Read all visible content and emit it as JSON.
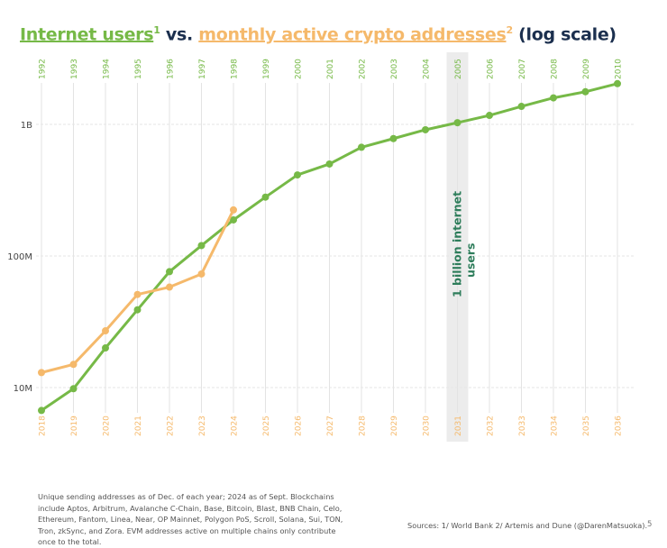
{
  "title": {
    "part1": "Internet users",
    "sup1": "1",
    "vs": " vs. ",
    "part2": "monthly active crypto addresses",
    "sup2": "2",
    "suffix": " (log scale)"
  },
  "colors": {
    "internet": "#76b947",
    "crypto": "#f5b96b",
    "title": "#1b2f4e",
    "highlight": "#ececec",
    "annotation": "#2e7d5b"
  },
  "chart_data": {
    "type": "line",
    "title": "Internet users vs. monthly active crypto addresses (log scale)",
    "y_scale": "log",
    "ylim": [
      5000000,
      2500000000
    ],
    "y_ticks": [
      {
        "value": 10000000,
        "label": "10M"
      },
      {
        "value": 100000000,
        "label": "100M"
      },
      {
        "value": 1000000000,
        "label": "1B"
      }
    ],
    "grid": true,
    "x_top": {
      "labels": [
        "1992",
        "1993",
        "1994",
        "1995",
        "1996",
        "1997",
        "1998",
        "1999",
        "2000",
        "2001",
        "2002",
        "2003",
        "2004",
        "2005",
        "2006",
        "2007",
        "2008",
        "2009",
        "2010"
      ]
    },
    "x_bottom": {
      "labels": [
        "2018",
        "2019",
        "2020",
        "2021",
        "2022",
        "2023",
        "2024",
        "2025",
        "2026",
        "2027",
        "2028",
        "2029",
        "2030",
        "2031",
        "2032",
        "2033",
        "2034",
        "2035",
        "2036"
      ]
    },
    "series": [
      {
        "name": "Internet users",
        "axis": "top",
        "values": [
          6700000,
          9800000,
          20000000,
          39000000,
          76000000,
          120000000,
          188000000,
          280000000,
          413000000,
          500000000,
          670000000,
          780000000,
          910000000,
          1030000000,
          1170000000,
          1370000000,
          1590000000,
          1770000000,
          2040000000
        ]
      },
      {
        "name": "monthly active crypto addresses",
        "axis": "bottom",
        "values": [
          13000000,
          15000000,
          27000000,
          51000000,
          58000000,
          73000000,
          224000000
        ]
      }
    ],
    "highlight": {
      "index": 13,
      "label": "1 billion internet users"
    }
  },
  "footnote": "Unique sending addresses as of Dec. of each year; 2024 as of Sept. Blockchains include Aptos, Arbitrum, Avalanche C-Chain, Base, Bitcoin, Blast, BNB Chain, Celo, Ethereum, Fantom, Linea, Near, OP Mainnet, Polygon PoS, Scroll, Solana, Sui, TON, Tron, zkSync, and Zora. EVM addresses active on multiple chains only contribute once to the total.",
  "sources": "Sources: 1/ World Bank 2/ Artemis and Dune (@DarenMatsuoka).",
  "page_number": "5"
}
